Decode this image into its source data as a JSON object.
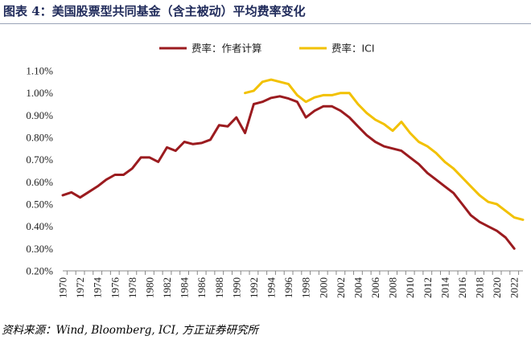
{
  "title": "图表 4：美国股票型共同基金（含主被动）平均费率变化",
  "source": "资料来源：Wind, Bloomberg, ICI, 方正证券研究所",
  "colors": {
    "series1": "#9b1b1f",
    "series2": "#f2c100",
    "axis": "#888888"
  },
  "chart_data": {
    "type": "line",
    "title": "",
    "xlabel": "",
    "ylabel": "",
    "ylim": [
      0.002,
      0.011
    ],
    "yticks": [
      "0.20%",
      "0.30%",
      "0.40%",
      "0.50%",
      "0.60%",
      "0.70%",
      "0.80%",
      "0.90%",
      "1.00%",
      "1.10%"
    ],
    "xlim": [
      1970,
      2023
    ],
    "xticks": [
      "1970",
      "1972",
      "1974",
      "1976",
      "1978",
      "1980",
      "1982",
      "1984",
      "1986",
      "1988",
      "1990",
      "1992",
      "1994",
      "1996",
      "1998",
      "2000",
      "2002",
      "2004",
      "2006",
      "2008",
      "2010",
      "2012",
      "2014",
      "2016",
      "2018",
      "2020",
      "2022"
    ],
    "legend_position": "top-center",
    "grid": false,
    "series": [
      {
        "name": "费率：作者计算",
        "x": [
          1970,
          1971,
          1972,
          1973,
          1974,
          1975,
          1976,
          1977,
          1978,
          1979,
          1980,
          1981,
          1982,
          1983,
          1984,
          1985,
          1986,
          1987,
          1988,
          1989,
          1990,
          1991,
          1992,
          1993,
          1994,
          1995,
          1996,
          1997,
          1998,
          1999,
          2000,
          2001,
          2002,
          2003,
          2004,
          2005,
          2006,
          2007,
          2008,
          2009,
          2010,
          2011,
          2012,
          2013,
          2014,
          2015,
          2016,
          2017,
          2018,
          2019,
          2020,
          2021,
          2022
        ],
        "values": [
          0.0054,
          0.00553,
          0.0053,
          0.00555,
          0.0058,
          0.0061,
          0.00632,
          0.00632,
          0.0066,
          0.0071,
          0.0071,
          0.0069,
          0.00755,
          0.0074,
          0.0078,
          0.0077,
          0.00775,
          0.0079,
          0.00855,
          0.0085,
          0.0089,
          0.0082,
          0.0095,
          0.0096,
          0.00978,
          0.00985,
          0.00975,
          0.0096,
          0.0089,
          0.0092,
          0.0094,
          0.0094,
          0.0092,
          0.0089,
          0.0085,
          0.0081,
          0.0078,
          0.0076,
          0.0075,
          0.0074,
          0.0071,
          0.0068,
          0.0064,
          0.0061,
          0.0058,
          0.0055,
          0.005,
          0.0045,
          0.0042,
          0.004,
          0.0038,
          0.0035,
          0.003
        ]
      },
      {
        "name": "费率：ICI",
        "x": [
          1991,
          1992,
          1993,
          1994,
          1995,
          1996,
          1997,
          1998,
          1999,
          2000,
          2001,
          2002,
          2003,
          2004,
          2005,
          2006,
          2007,
          2008,
          2009,
          2010,
          2011,
          2012,
          2013,
          2014,
          2015,
          2016,
          2017,
          2018,
          2019,
          2020,
          2021,
          2022,
          2023
        ],
        "values": [
          0.01,
          0.0101,
          0.0105,
          0.0106,
          0.0105,
          0.0104,
          0.0099,
          0.0096,
          0.0098,
          0.0099,
          0.0099,
          0.01,
          0.01,
          0.0095,
          0.0091,
          0.0088,
          0.0086,
          0.0083,
          0.0087,
          0.0082,
          0.0078,
          0.0076,
          0.0073,
          0.0069,
          0.0066,
          0.0062,
          0.0058,
          0.0054,
          0.0051,
          0.005,
          0.0047,
          0.0044,
          0.0043
        ]
      }
    ]
  }
}
